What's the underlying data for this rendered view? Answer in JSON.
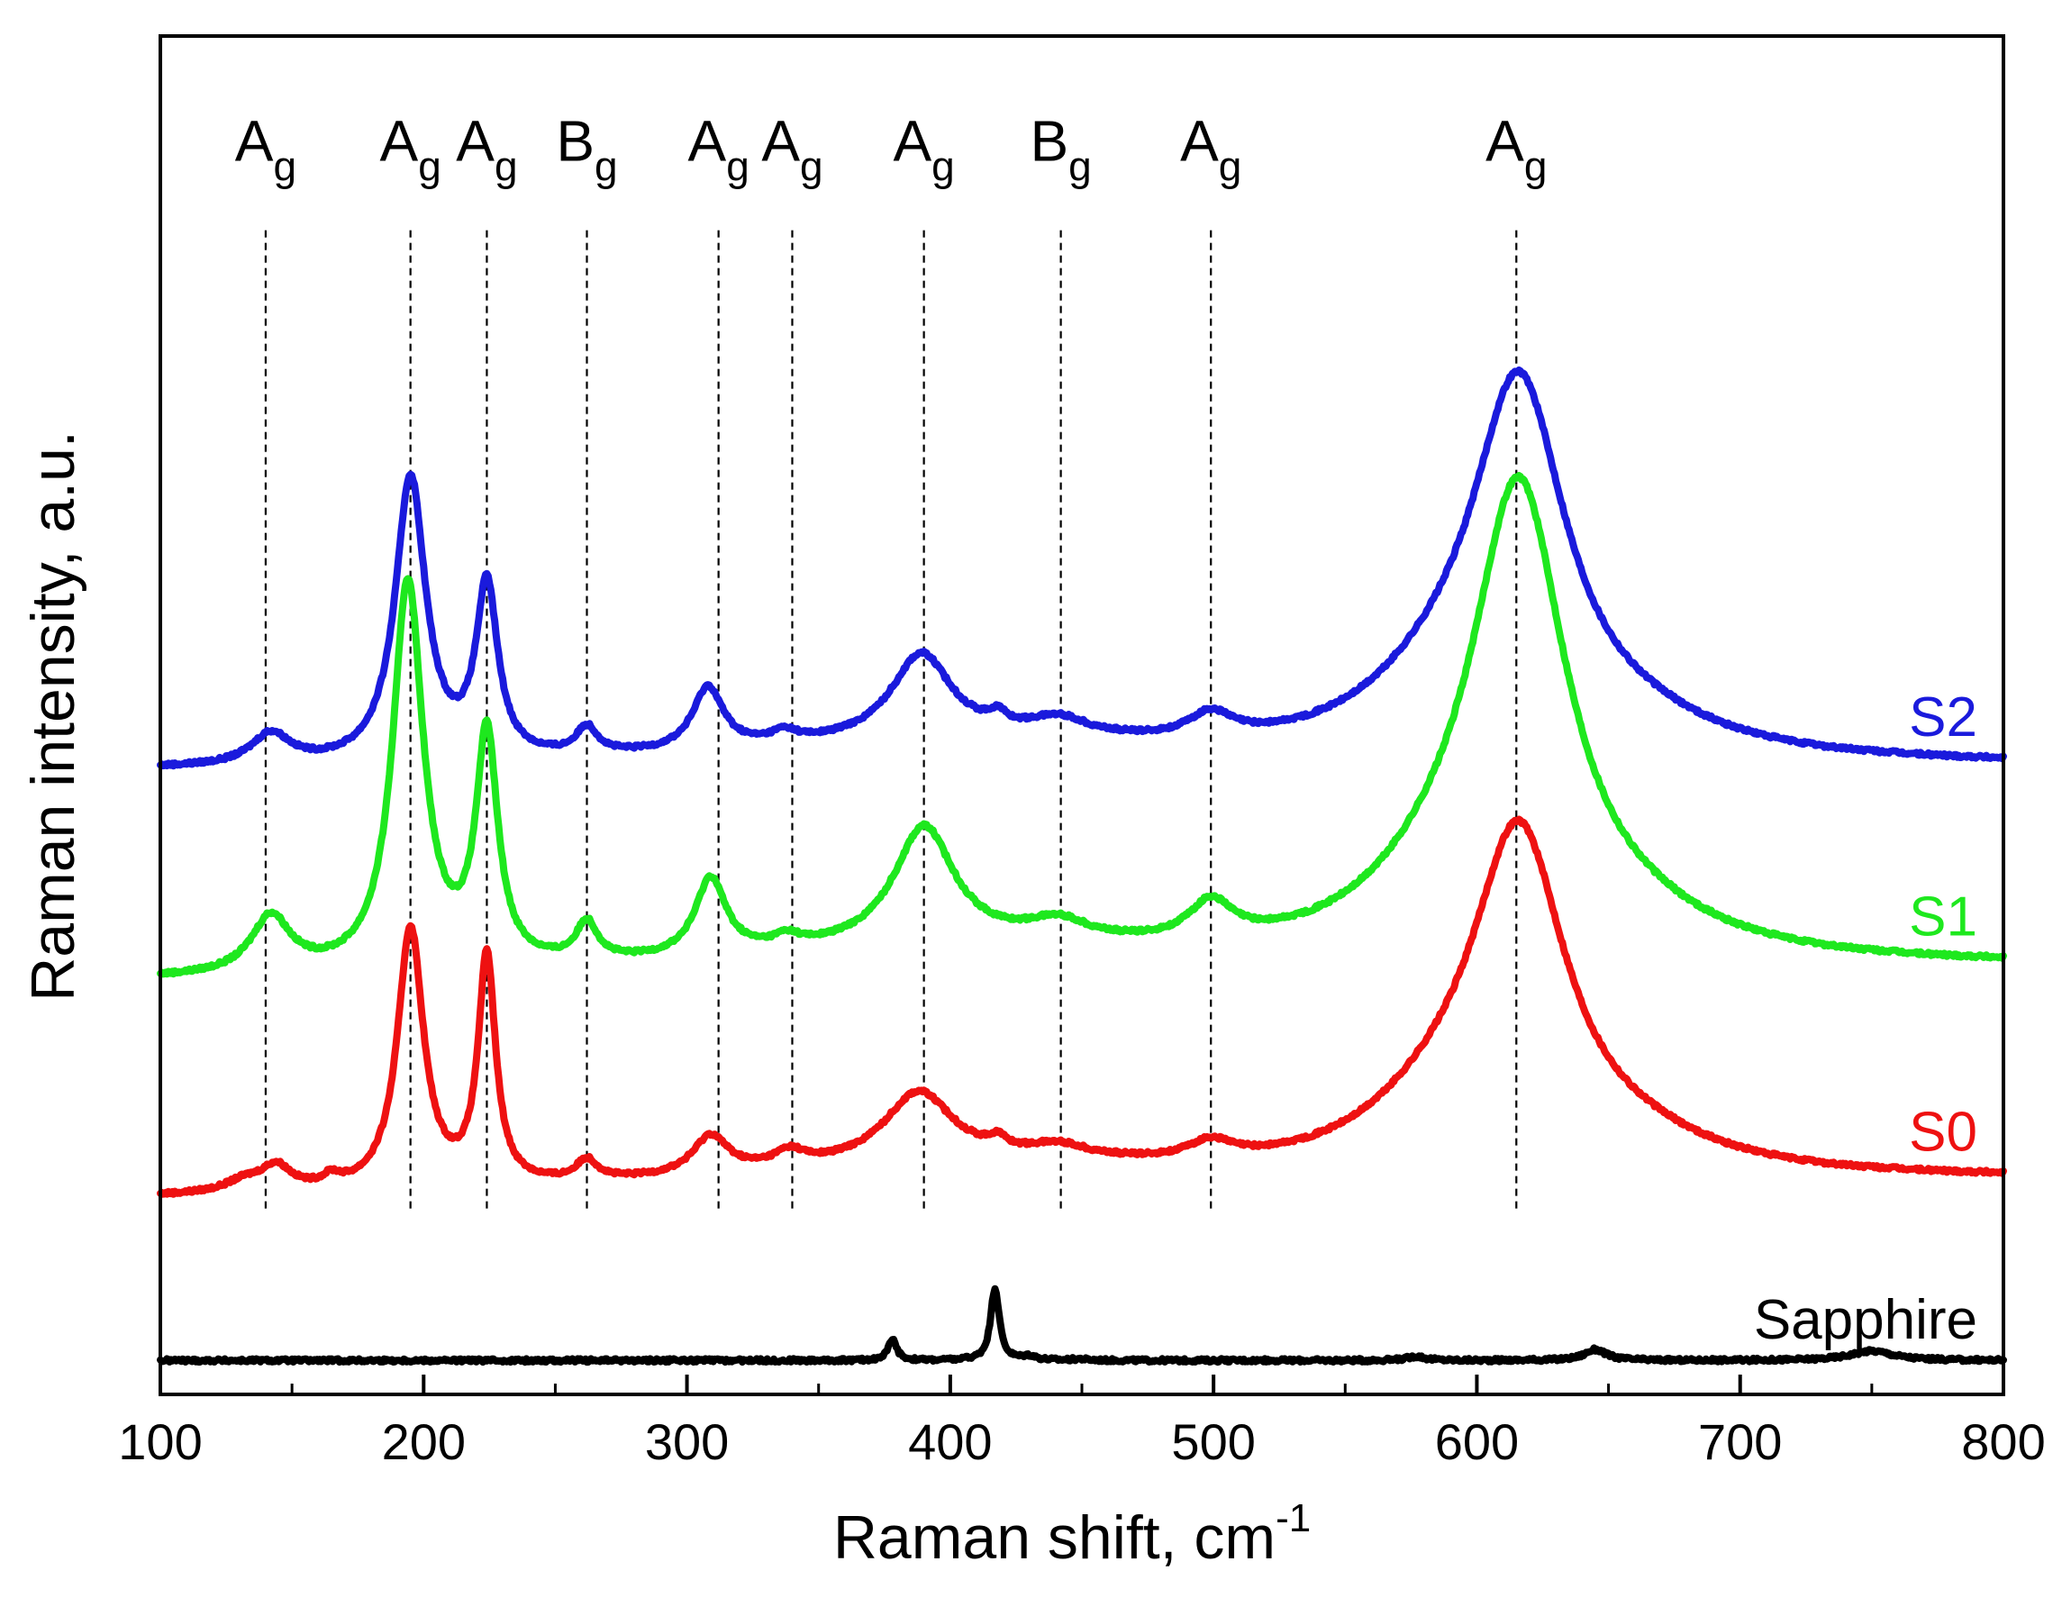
{
  "chart_data": {
    "type": "line",
    "title": "",
    "xlabel": "Raman shift, cm",
    "xlabel_superscript": "-1",
    "ylabel": "Raman intensity, a.u.",
    "xlim": [
      100,
      800
    ],
    "ylim": [
      0,
      100
    ],
    "x_ticks": [
      100,
      200,
      300,
      400,
      500,
      600,
      700,
      800
    ],
    "y_ticks_visible": false,
    "grid": false,
    "series": [
      {
        "name": "S2",
        "color": "#1a1adc",
        "baseline": 46.0,
        "slope": 0.3,
        "bg_wide": {
          "center": 400,
          "width": 130,
          "amp": 1.5
        },
        "peaks": [
          {
            "x": 142,
            "h": 2.3,
            "w": 9
          },
          {
            "x": 195,
            "h": 21.0,
            "w": 7
          },
          {
            "x": 224,
            "h": 12.6,
            "w": 5
          },
          {
            "x": 262,
            "h": 2.0,
            "w": 5
          },
          {
            "x": 308,
            "h": 4.6,
            "w": 7
          },
          {
            "x": 337,
            "h": 0.8,
            "w": 6
          },
          {
            "x": 389,
            "h": 6.4,
            "w": 14
          },
          {
            "x": 418,
            "h": 0.9,
            "w": 4
          },
          {
            "x": 441,
            "h": 1.4,
            "w": 14
          },
          {
            "x": 499,
            "h": 1.8,
            "w": 10
          },
          {
            "x": 616,
            "h": 26.3,
            "w": 22
          },
          {
            "x": 585,
            "h": 3.5,
            "w": 35
          },
          {
            "x": 660,
            "h": 1.5,
            "w": 40
          }
        ]
      },
      {
        "name": "S1",
        "color": "#1ee81e",
        "baseline": 30.5,
        "slope": 1.0,
        "bg_wide": {
          "center": 400,
          "width": 130,
          "amp": 1.5
        },
        "peaks": [
          {
            "x": 142,
            "h": 4.2,
            "w": 9
          },
          {
            "x": 194,
            "h": 28.6,
            "w": 7
          },
          {
            "x": 224,
            "h": 16.8,
            "w": 5
          },
          {
            "x": 262,
            "h": 2.8,
            "w": 5
          },
          {
            "x": 309,
            "h": 5.7,
            "w": 7
          },
          {
            "x": 338,
            "h": 0.8,
            "w": 6
          },
          {
            "x": 390,
            "h": 8.8,
            "w": 14
          },
          {
            "x": 441,
            "h": 1.5,
            "w": 14
          },
          {
            "x": 499,
            "h": 2.8,
            "w": 10
          },
          {
            "x": 616,
            "h": 33.5,
            "w": 22
          },
          {
            "x": 585,
            "h": 3.5,
            "w": 35
          },
          {
            "x": 660,
            "h": 1.5,
            "w": 40
          }
        ]
      },
      {
        "name": "S0",
        "color": "#ee1111",
        "baseline": 14.5,
        "slope": 1.3,
        "bg_wide": {
          "center": 400,
          "width": 130,
          "amp": 1.5
        },
        "peaks": [
          {
            "x": 132,
            "h": 0.8,
            "w": 9
          },
          {
            "x": 144,
            "h": 1.8,
            "w": 7
          },
          {
            "x": 165,
            "h": 0.7,
            "w": 4
          },
          {
            "x": 195,
            "h": 19.2,
            "w": 6
          },
          {
            "x": 224,
            "h": 16.7,
            "w": 4
          },
          {
            "x": 262,
            "h": 1.5,
            "w": 5
          },
          {
            "x": 309,
            "h": 2.8,
            "w": 8
          },
          {
            "x": 339,
            "h": 1.1,
            "w": 7
          },
          {
            "x": 388,
            "h": 5.3,
            "w": 16
          },
          {
            "x": 418,
            "h": 0.8,
            "w": 4
          },
          {
            "x": 441,
            "h": 1.0,
            "w": 14
          },
          {
            "x": 499,
            "h": 1.3,
            "w": 10
          },
          {
            "x": 616,
            "h": 24.0,
            "w": 22
          },
          {
            "x": 585,
            "h": 3.5,
            "w": 35
          },
          {
            "x": 660,
            "h": 1.5,
            "w": 40
          }
        ]
      },
      {
        "name": "Sapphire",
        "color": "#000000",
        "baseline": 2.5,
        "slope": 0.0,
        "bg_wide": {
          "center": 400,
          "width": 130,
          "amp": 0.0
        },
        "peaks": [
          {
            "x": 378,
            "h": 1.5,
            "w": 2
          },
          {
            "x": 417,
            "h": 5.3,
            "w": 2
          },
          {
            "x": 430,
            "h": 0.3,
            "w": 3
          },
          {
            "x": 449,
            "h": 0.1,
            "w": 3
          },
          {
            "x": 577,
            "h": 0.3,
            "w": 4
          },
          {
            "x": 645,
            "h": 0.8,
            "w": 5
          },
          {
            "x": 750,
            "h": 0.7,
            "w": 10
          }
        ]
      }
    ],
    "mode_markers": [
      {
        "x": 140,
        "main": "A",
        "sub": "g"
      },
      {
        "x": 195,
        "main": "A",
        "sub": "g"
      },
      {
        "x": 224,
        "main": "A",
        "sub": "g"
      },
      {
        "x": 262,
        "main": "B",
        "sub": "g"
      },
      {
        "x": 312,
        "main": "A",
        "sub": "g"
      },
      {
        "x": 340,
        "main": "A",
        "sub": "g"
      },
      {
        "x": 390,
        "main": "A",
        "sub": "g"
      },
      {
        "x": 442,
        "main": "B",
        "sub": "g"
      },
      {
        "x": 499,
        "main": "A",
        "sub": "g"
      },
      {
        "x": 615,
        "main": "A",
        "sub": "g"
      }
    ]
  }
}
